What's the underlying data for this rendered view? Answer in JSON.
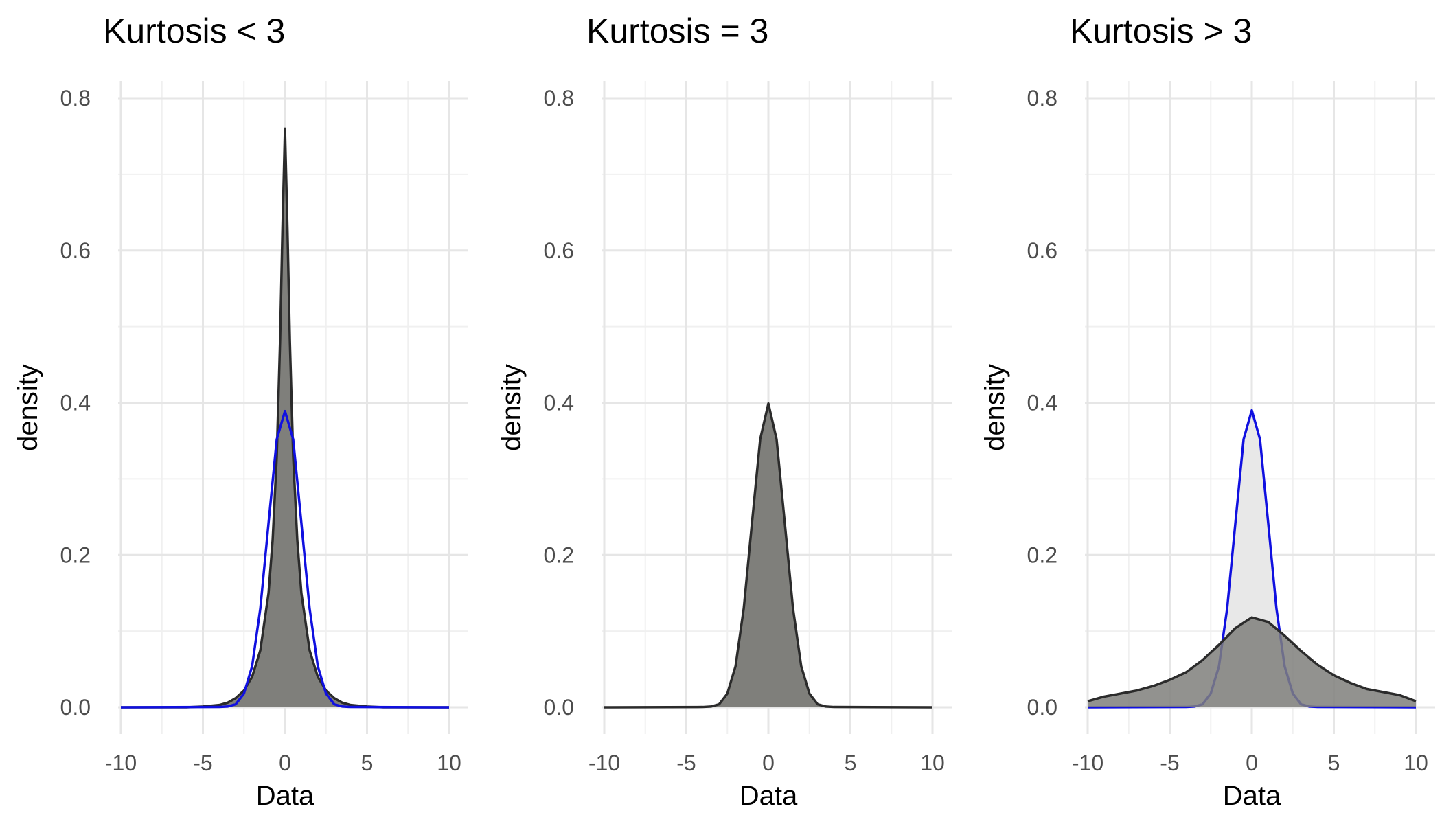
{
  "chart_data": [
    {
      "type": "area",
      "title": "Kurtosis < 3",
      "xlabel": "Data",
      "ylabel": "density",
      "xlim": [
        -10,
        10
      ],
      "ylim": [
        0,
        0.8
      ],
      "x_ticks": [
        "-10",
        "-5",
        "0",
        "5",
        "10"
      ],
      "y_ticks": [
        "0.0",
        "0.2",
        "0.4",
        "0.6",
        "0.8"
      ],
      "grid": true,
      "series": [
        {
          "kind": "filled-density",
          "fill": "#7f7f7b",
          "stroke": "#2b2b2b",
          "x": [
            -10,
            -6,
            -5,
            -4,
            -3.5,
            -3,
            -2.5,
            -2,
            -1.5,
            -1,
            -0.75,
            -0.5,
            -0.3,
            -0.15,
            0,
            0.15,
            0.3,
            0.5,
            0.75,
            1,
            1.5,
            2,
            2.5,
            3,
            3.5,
            4,
            5,
            6,
            10
          ],
          "y": [
            0,
            0,
            0.001,
            0.003,
            0.006,
            0.012,
            0.022,
            0.04,
            0.075,
            0.15,
            0.22,
            0.33,
            0.48,
            0.63,
            0.76,
            0.63,
            0.48,
            0.33,
            0.22,
            0.15,
            0.075,
            0.04,
            0.022,
            0.012,
            0.006,
            0.003,
            0.001,
            0,
            0
          ]
        },
        {
          "kind": "density-line",
          "stroke": "#1010e0",
          "x": [
            -10,
            -4,
            -3.5,
            -3,
            -2.5,
            -2,
            -1.5,
            -1,
            -0.5,
            0,
            0.5,
            1,
            1.5,
            2,
            2.5,
            3,
            3.5,
            4,
            10
          ],
          "y": [
            0,
            0.0004,
            0.001,
            0.004,
            0.018,
            0.054,
            0.13,
            0.242,
            0.352,
            0.389,
            0.352,
            0.242,
            0.13,
            0.054,
            0.018,
            0.004,
            0.001,
            0.0004,
            0
          ]
        }
      ]
    },
    {
      "type": "area",
      "title": "Kurtosis = 3",
      "xlabel": "Data",
      "ylabel": "density",
      "xlim": [
        -10,
        10
      ],
      "ylim": [
        0,
        0.8
      ],
      "x_ticks": [
        "-10",
        "-5",
        "0",
        "5",
        "10"
      ],
      "y_ticks": [
        "0.0",
        "0.2",
        "0.4",
        "0.6",
        "0.8"
      ],
      "grid": true,
      "series": [
        {
          "kind": "filled-density",
          "fill": "#7f7f7b",
          "stroke": "#2b2b2b",
          "x": [
            -10,
            -4,
            -3.5,
            -3,
            -2.5,
            -2,
            -1.5,
            -1,
            -0.5,
            0,
            0.5,
            1,
            1.5,
            2,
            2.5,
            3,
            3.5,
            4,
            10
          ],
          "y": [
            0,
            0.0004,
            0.001,
            0.004,
            0.018,
            0.054,
            0.13,
            0.242,
            0.352,
            0.399,
            0.352,
            0.242,
            0.13,
            0.054,
            0.018,
            0.004,
            0.001,
            0.0004,
            0
          ]
        }
      ]
    },
    {
      "type": "area",
      "title": "Kurtosis > 3",
      "xlabel": "Data",
      "ylabel": "density",
      "xlim": [
        -10,
        10
      ],
      "ylim": [
        0,
        0.8
      ],
      "x_ticks": [
        "-10",
        "-5",
        "0",
        "5",
        "10"
      ],
      "y_ticks": [
        "0.0",
        "0.2",
        "0.4",
        "0.6",
        "0.8"
      ],
      "grid": true,
      "series": [
        {
          "kind": "filled-density",
          "fill": "#e8e8e8",
          "stroke": "#1010e0",
          "x": [
            -10,
            -4,
            -3.5,
            -3,
            -2.5,
            -2,
            -1.5,
            -1,
            -0.5,
            0,
            0.5,
            1,
            1.5,
            2,
            2.5,
            3,
            3.5,
            4,
            10
          ],
          "y": [
            0,
            0.0004,
            0.001,
            0.004,
            0.018,
            0.054,
            0.13,
            0.242,
            0.352,
            0.39,
            0.352,
            0.242,
            0.13,
            0.054,
            0.018,
            0.004,
            0.001,
            0.0004,
            0
          ]
        },
        {
          "kind": "filled-density",
          "fill": "#7f7f7b",
          "fill_opacity": 0.85,
          "stroke": "#2b2b2b",
          "x": [
            -10,
            -9,
            -8,
            -7,
            -6,
            -5,
            -4,
            -3,
            -2,
            -1,
            0,
            1,
            2,
            3,
            4,
            5,
            6,
            7,
            8,
            9,
            10
          ],
          "y": [
            0.008,
            0.014,
            0.018,
            0.022,
            0.028,
            0.036,
            0.046,
            0.062,
            0.082,
            0.104,
            0.118,
            0.112,
            0.094,
            0.074,
            0.056,
            0.042,
            0.032,
            0.024,
            0.02,
            0.016,
            0.008
          ]
        }
      ]
    }
  ]
}
